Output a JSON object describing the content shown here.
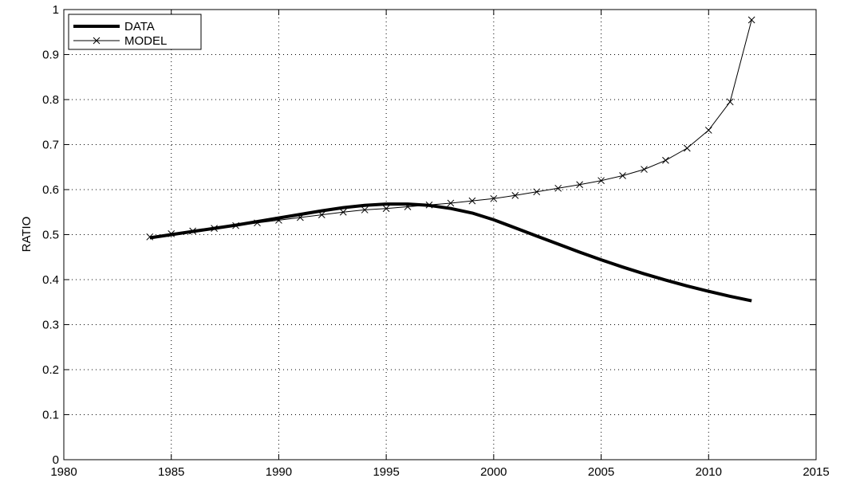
{
  "chart_data": {
    "type": "line",
    "title": "",
    "xlabel": "",
    "ylabel": "RATIO",
    "xlim": [
      1980,
      2015
    ],
    "ylim": [
      0,
      1
    ],
    "xticks": [
      1980,
      1985,
      1990,
      1995,
      2000,
      2005,
      2010,
      2015
    ],
    "yticks": [
      0,
      0.1,
      0.2,
      0.3,
      0.4,
      0.5,
      0.6,
      0.7,
      0.8,
      0.9,
      1
    ],
    "grid": true,
    "legend_position": "top-left",
    "series": [
      {
        "name": "DATA",
        "style": "thick-line",
        "x": [
          1984,
          1985,
          1986,
          1987,
          1988,
          1989,
          1990,
          1991,
          1992,
          1993,
          1994,
          1995,
          1996,
          1997,
          1998,
          1999,
          2000,
          2001,
          2002,
          2003,
          2004,
          2005,
          2006,
          2007,
          2008,
          2009,
          2010,
          2011,
          2012
        ],
        "y": [
          0.493,
          0.5,
          0.507,
          0.514,
          0.521,
          0.529,
          0.537,
          0.545,
          0.553,
          0.56,
          0.565,
          0.568,
          0.568,
          0.565,
          0.558,
          0.548,
          0.533,
          0.515,
          0.497,
          0.479,
          0.461,
          0.444,
          0.428,
          0.413,
          0.399,
          0.386,
          0.374,
          0.363,
          0.353
        ]
      },
      {
        "name": "MODEL",
        "style": "thin-line-x-markers",
        "x": [
          1984,
          1985,
          1986,
          1987,
          1988,
          1989,
          1990,
          1991,
          1992,
          1993,
          1994,
          1995,
          1996,
          1997,
          1998,
          1999,
          2000,
          2001,
          2002,
          2003,
          2004,
          2005,
          2006,
          2007,
          2008,
          2009,
          2010,
          2011,
          2012
        ],
        "y": [
          0.495,
          0.502,
          0.508,
          0.514,
          0.52,
          0.526,
          0.532,
          0.538,
          0.544,
          0.55,
          0.555,
          0.558,
          0.562,
          0.566,
          0.57,
          0.575,
          0.58,
          0.587,
          0.595,
          0.603,
          0.611,
          0.62,
          0.631,
          0.645,
          0.665,
          0.692,
          0.732,
          0.795,
          0.977
        ]
      }
    ]
  }
}
